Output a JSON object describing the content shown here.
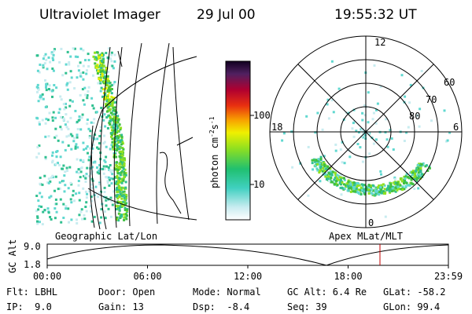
{
  "header": {
    "instrument": "Ultraviolet Imager",
    "date": "29 Jul 00",
    "time": "19:55:32 UT"
  },
  "colorbar": {
    "label_parts": [
      "photon cm",
      "-2",
      "s",
      "-1"
    ],
    "ticks": [
      "100",
      "10"
    ]
  },
  "polar": {
    "mlt_labels": [
      "12",
      "18",
      "6",
      "0"
    ],
    "lat_labels": [
      "60",
      "70",
      "80"
    ]
  },
  "image_labels": {
    "left": "Geographic Lat/Lon",
    "right": "Apex MLat/MLT"
  },
  "altitude_plot": {
    "ylabel": "GC Alt",
    "yticks": [
      "9.0",
      "1.8"
    ],
    "xticks": [
      "00:00",
      "06:00",
      "12:00",
      "18:00",
      "23:59"
    ]
  },
  "info": {
    "rows": [
      [
        "Flt: LBHL",
        "Door: Open",
        "Mode: Normal",
        "GC Alt: 6.4 Re",
        "GLat: -58.2"
      ],
      [
        "IP:  9.0",
        "Gain: 13",
        "Dsp:  -8.4",
        "Seq: 39",
        "GLon: 99.4"
      ]
    ]
  }
}
